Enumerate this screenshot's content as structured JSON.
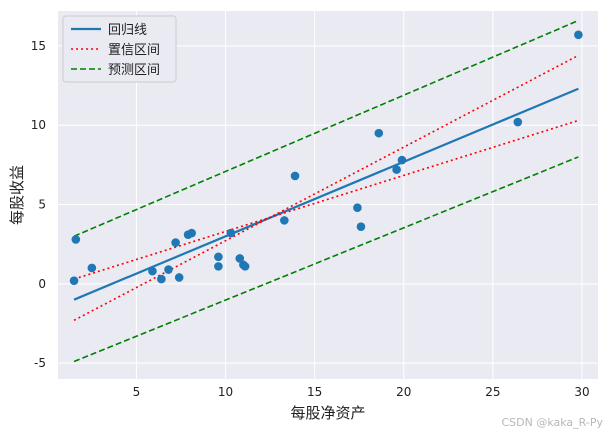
{
  "chart_data": {
    "type": "scatter",
    "xlabel": "每股净资产",
    "ylabel": "每股收益",
    "xlim": [
      0.6,
      30.9
    ],
    "ylim": [
      -6.0,
      17.2
    ],
    "xticks": [
      5,
      10,
      15,
      20,
      25,
      30
    ],
    "yticks": [
      -5,
      0,
      5,
      10,
      15
    ],
    "grid": true,
    "legend_position": "top-left",
    "points": [
      {
        "x": 1.5,
        "y": 0.2
      },
      {
        "x": 1.6,
        "y": 2.8
      },
      {
        "x": 2.5,
        "y": 1.0
      },
      {
        "x": 5.9,
        "y": 0.8
      },
      {
        "x": 6.4,
        "y": 0.3
      },
      {
        "x": 6.8,
        "y": 0.9
      },
      {
        "x": 7.2,
        "y": 2.6
      },
      {
        "x": 7.4,
        "y": 0.4
      },
      {
        "x": 7.9,
        "y": 3.1
      },
      {
        "x": 8.1,
        "y": 3.2
      },
      {
        "x": 9.6,
        "y": 1.7
      },
      {
        "x": 9.6,
        "y": 1.1
      },
      {
        "x": 10.3,
        "y": 3.2
      },
      {
        "x": 10.8,
        "y": 1.6
      },
      {
        "x": 11.0,
        "y": 1.2
      },
      {
        "x": 11.1,
        "y": 1.1
      },
      {
        "x": 13.3,
        "y": 4.0
      },
      {
        "x": 13.9,
        "y": 6.8
      },
      {
        "x": 17.4,
        "y": 4.8
      },
      {
        "x": 17.6,
        "y": 3.6
      },
      {
        "x": 18.6,
        "y": 9.5
      },
      {
        "x": 19.6,
        "y": 7.2
      },
      {
        "x": 19.9,
        "y": 7.8
      },
      {
        "x": 26.4,
        "y": 10.2
      },
      {
        "x": 29.8,
        "y": 15.7
      }
    ],
    "series": [
      {
        "name": "回归线",
        "style": "solid",
        "color": "#1f77b4",
        "x": [
          1.5,
          29.8
        ],
        "y": [
          -1.0,
          12.3
        ]
      },
      {
        "name": "置信区间",
        "style": "dotted",
        "color": "#ff0000",
        "x": [
          1.5,
          29.8
        ],
        "y": [
          -2.3,
          14.4
        ]
      },
      {
        "name": "置信区间",
        "style": "dotted",
        "color": "#ff0000",
        "legend": false,
        "x": [
          1.5,
          29.8
        ],
        "y": [
          0.3,
          10.3
        ]
      },
      {
        "name": "预测区间",
        "style": "dashed",
        "color": "#008000",
        "x": [
          1.5,
          29.8
        ],
        "y": [
          3.0,
          16.6
        ]
      },
      {
        "name": "预测区间",
        "style": "dashed",
        "color": "#008000",
        "legend": false,
        "x": [
          1.5,
          29.8
        ],
        "y": [
          -4.9,
          8.0
        ]
      }
    ],
    "point_color": "#1f77b4",
    "background": "#eaeaf2"
  },
  "watermark": "CSDN @kaka_R-Py"
}
